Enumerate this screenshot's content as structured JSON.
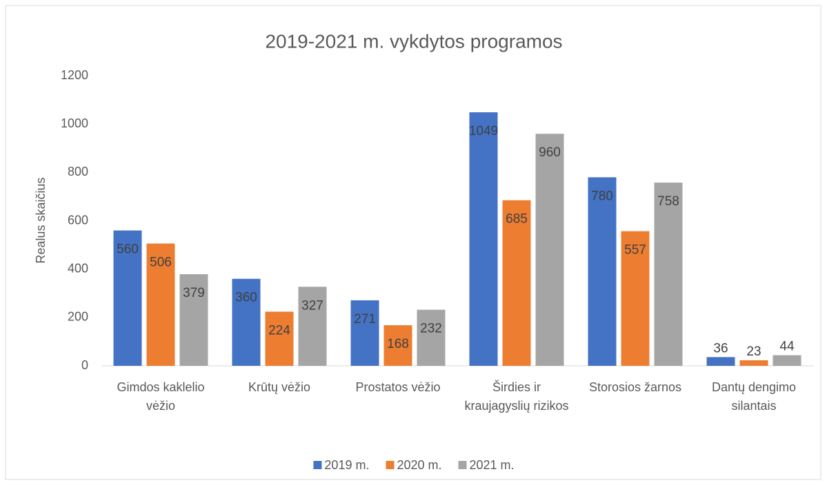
{
  "chart_data": {
    "type": "bar",
    "title": "2019-2021 m. vykdytos programos",
    "y_label": "Realus skaičius",
    "categories": [
      "Gimdos kaklelio vėžio",
      "Krūtų vėžio",
      "Prostatos vėžio",
      "Širdies ir kraujagyslių rizikos",
      "Storosios žarnos",
      "Dantų dengimo silantais"
    ],
    "series": [
      {
        "name": "2019 m.",
        "color": "#4472c4",
        "values": [
          560,
          360,
          271,
          1049,
          780,
          36
        ]
      },
      {
        "name": "2020 m.",
        "color": "#ed7d31",
        "values": [
          506,
          224,
          168,
          685,
          557,
          23
        ]
      },
      {
        "name": "2021 m.",
        "color": "#a5a5a5",
        "values": [
          379,
          327,
          232,
          960,
          758,
          44
        ]
      }
    ],
    "ylim": [
      0,
      1200
    ],
    "yticks": [
      0,
      200,
      400,
      600,
      800,
      1000,
      1200
    ],
    "grid": false,
    "legend": "bottom"
  }
}
